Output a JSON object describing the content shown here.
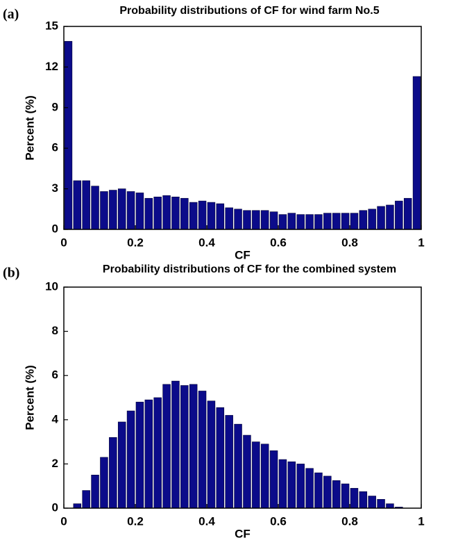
{
  "chart_data": [
    {
      "type": "histogram",
      "panel": "(a)",
      "title": "Probability distributions of CF for wind farm No.5",
      "xlabel": "CF",
      "ylabel": "Percent (%)",
      "color": "#0b0b8a",
      "bins": [
        0,
        0.025,
        0.05,
        0.075,
        0.1,
        0.125,
        0.15,
        0.175,
        0.2,
        0.225,
        0.25,
        0.275,
        0.3,
        0.325,
        0.35,
        0.375,
        0.4,
        0.425,
        0.45,
        0.475,
        0.5,
        0.525,
        0.55,
        0.575,
        0.6,
        0.625,
        0.65,
        0.675,
        0.7,
        0.725,
        0.75,
        0.775,
        0.8,
        0.825,
        0.85,
        0.875,
        0.9,
        0.925,
        0.95,
        0.975,
        1
      ],
      "counts": [
        13.9,
        3.6,
        3.6,
        3.2,
        2.8,
        2.9,
        3.0,
        2.8,
        2.7,
        2.3,
        2.4,
        2.5,
        2.4,
        2.3,
        2.0,
        2.1,
        2.0,
        1.9,
        1.6,
        1.5,
        1.4,
        1.4,
        1.4,
        1.3,
        1.1,
        1.2,
        1.1,
        1.1,
        1.1,
        1.2,
        1.2,
        1.2,
        1.2,
        1.4,
        1.5,
        1.7,
        1.8,
        2.1,
        2.3,
        11.3
      ],
      "xlim": [
        0,
        1
      ],
      "xticks": [
        0,
        0.2,
        0.4,
        0.6,
        0.8,
        1
      ],
      "ylim": [
        0,
        15
      ],
      "yticks": [
        0,
        3,
        6,
        9,
        12,
        15
      ]
    },
    {
      "type": "histogram",
      "panel": "(b)",
      "title": "Probability distributions of CF for the combined system",
      "xlabel": "CF",
      "ylabel": "Percent (%)",
      "color": "#0b0b8a",
      "bins": [
        0,
        0.025,
        0.05,
        0.075,
        0.1,
        0.125,
        0.15,
        0.175,
        0.2,
        0.225,
        0.25,
        0.275,
        0.3,
        0.325,
        0.35,
        0.375,
        0.4,
        0.425,
        0.45,
        0.475,
        0.5,
        0.525,
        0.55,
        0.575,
        0.6,
        0.625,
        0.65,
        0.675,
        0.7,
        0.725,
        0.75,
        0.775,
        0.8,
        0.825,
        0.85,
        0.875,
        0.9,
        0.925,
        0.95,
        0.975,
        1
      ],
      "counts": [
        0,
        0.2,
        0.8,
        1.5,
        2.3,
        3.2,
        3.9,
        4.4,
        4.8,
        4.9,
        5.0,
        5.6,
        5.75,
        5.55,
        5.6,
        5.3,
        4.85,
        4.55,
        4.2,
        3.8,
        3.3,
        3.0,
        2.9,
        2.6,
        2.2,
        2.1,
        2.0,
        1.8,
        1.6,
        1.45,
        1.25,
        1.1,
        0.9,
        0.75,
        0.55,
        0.4,
        0.2,
        0.05,
        0,
        0
      ],
      "xlim": [
        0,
        1
      ],
      "xticks": [
        0,
        0.2,
        0.4,
        0.6,
        0.8,
        1
      ],
      "ylim": [
        0,
        10
      ],
      "yticks": [
        0,
        2,
        4,
        6,
        8,
        10
      ]
    }
  ]
}
